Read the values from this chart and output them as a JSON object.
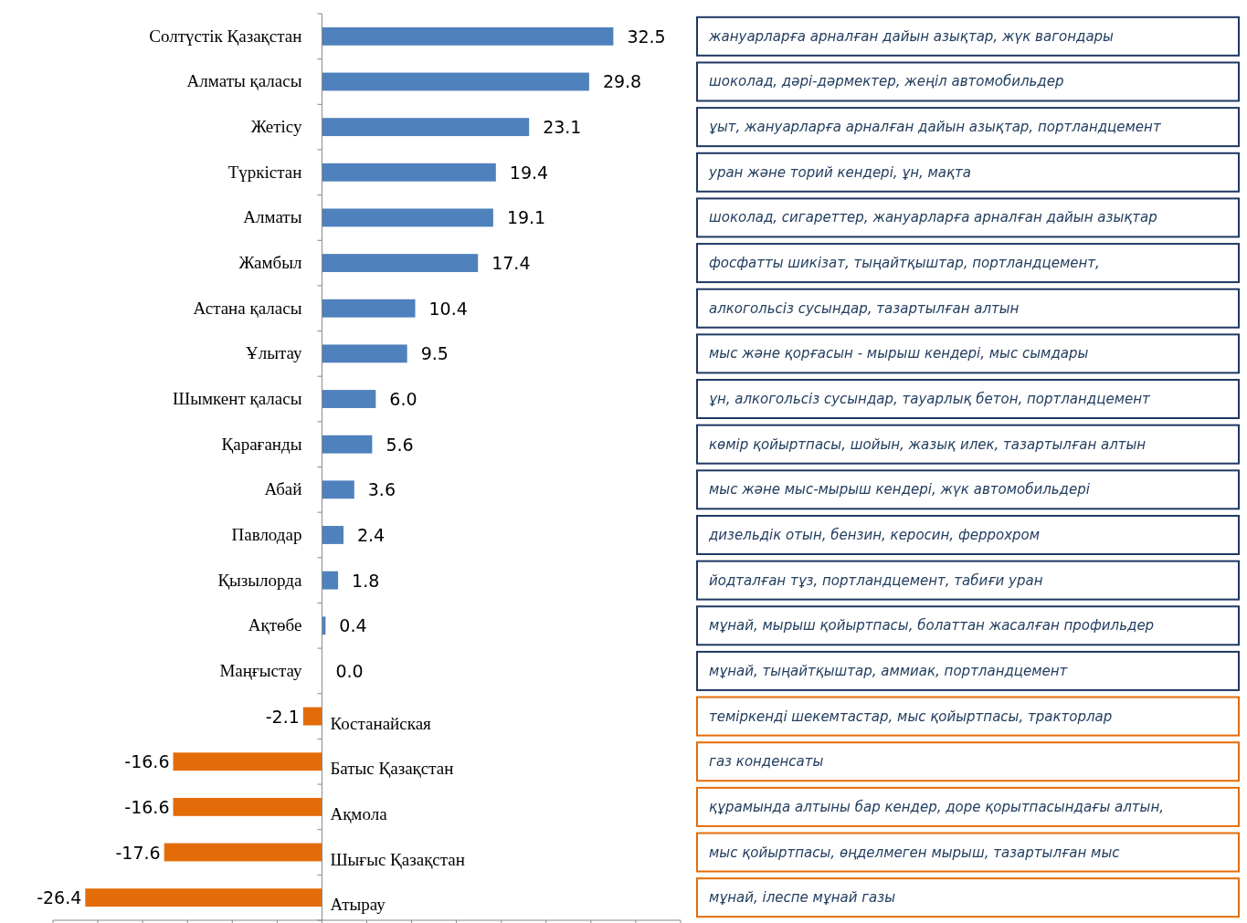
{
  "chart_data": {
    "type": "bar",
    "orientation": "horizontal",
    "categories": [
      "Солтүстік Қазақстан",
      "Алматы қаласы",
      "Жетісу",
      "Түркістан",
      "Алматы",
      "Жамбыл",
      "Астана қаласы",
      "Ұлытау",
      "Шымкент қаласы",
      "Қарағанды",
      "Абай",
      "Павлодар",
      "Қызылорда",
      "Ақтөбе",
      "Маңғыстау",
      "Костанайская",
      "Батыс Қазақстан",
      "Ақмола",
      "Шығыс Қазақстан",
      "Атырау"
    ],
    "values": [
      32.5,
      29.8,
      23.1,
      19.4,
      19.1,
      17.4,
      10.4,
      9.5,
      6.0,
      5.6,
      3.6,
      2.4,
      1.8,
      0.4,
      0.0,
      -2.1,
      -16.6,
      -16.6,
      -17.6,
      -26.4
    ],
    "value_labels": [
      "32.5",
      "29.8",
      "23.1",
      "19.4",
      "19.1",
      "17.4",
      "10.4",
      "9.5",
      "6.0",
      "5.6",
      "3.6",
      "2.4",
      "1.8",
      "0.4",
      "0.0",
      "-2.1",
      "-16.6",
      "-16.6",
      "-17.6",
      "-26.4"
    ],
    "colors": [
      "#4f81bd",
      "#4f81bd",
      "#4f81bd",
      "#4f81bd",
      "#4f81bd",
      "#4f81bd",
      "#4f81bd",
      "#4f81bd",
      "#4f81bd",
      "#4f81bd",
      "#4f81bd",
      "#4f81bd",
      "#4f81bd",
      "#4f81bd",
      "#4f81bd",
      "#e36c09",
      "#e36c09",
      "#e36c09",
      "#e36c09",
      "#e36c09"
    ],
    "xlim": [
      -30,
      40
    ],
    "xticks": [
      {
        "value": -30,
        "label": null
      },
      {
        "value": -25,
        "label": null
      },
      {
        "value": -20,
        "label": null
      },
      {
        "value": -15,
        "label": null
      },
      {
        "value": -10,
        "label": null
      },
      {
        "value": -5,
        "label": null
      },
      {
        "value": 0,
        "label": null
      },
      {
        "value": 5,
        "label": null
      },
      {
        "value": 10,
        "label": null
      },
      {
        "value": 15,
        "label": null
      },
      {
        "value": 20,
        "label": null
      },
      {
        "value": 25,
        "label": null
      },
      {
        "value": 30,
        "label": null
      },
      {
        "value": 35,
        "label": null
      },
      {
        "value": 40,
        "label": null
      }
    ],
    "grid": false,
    "annotations": [
      "жануарларға арналған дайын азықтар, жүк вагондары",
      "шоколад,  дәрі-дәрмектер, жеңіл автомобильдер",
      "ұыт, жануарларға арналған дайын азықтар, портландцемент",
      "уран және торий кендері, ұн, мақта",
      "шоколад, сигареттер, жануарларға арналған дайын азықтар",
      "фосфатты шикізат, тыңайтқыштар, портландцемент,",
      "алкогольсіз сусындар, тазартылған алтын",
      "мыс және қорғасын - мырыш кендері, мыс сымдары",
      "ұн, алкогольсіз сусындар, тауарлық бетон, портландцемент",
      "көмір қойыртпасы, шойын, жазық илек, тазартылған алтын",
      "мыс және мыс-мырыш кендері, жүк  автомобильдері",
      "дизельдік отын, бензин, керосин,  феррохром",
      "йодталған тұз, портландцемент, табиғи уран",
      "мұнай, мырыш қойыртпасы, болаттан жасалған профильдер",
      "мұнай, тыңайтқыштар,  аммиак, портландцемент",
      "теміркенді шекемтастар, мыс қойыртпасы, тракторлар",
      "газ конденсаты",
      "құрамында алтыны бар кендер, доре қорытпасындағы алтын,",
      "мыс қойыртпасы, өңделмеген мырыш, тазартылған мыс",
      "мұнай, ілеспе мұнай газы"
    ]
  }
}
